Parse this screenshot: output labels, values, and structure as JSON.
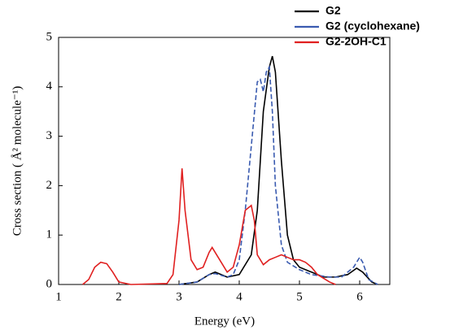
{
  "chart_data": {
    "type": "line",
    "xlabel": "Energy (eV)",
    "ylabel": "Cross section ( Å² molecule⁻¹)",
    "xlim": [
      1,
      6.5
    ],
    "xticks": [
      1,
      2,
      3,
      4,
      5,
      6
    ],
    "ylim": [
      0,
      5
    ],
    "yticks": [
      0,
      1,
      2,
      3,
      4,
      5
    ],
    "legend": "top-right",
    "series": [
      {
        "name": "G2",
        "color": "#000000",
        "dashed": false,
        "x": [
          3.0,
          3.3,
          3.5,
          3.6,
          3.8,
          4.0,
          4.2,
          4.3,
          4.4,
          4.5,
          4.55,
          4.6,
          4.7,
          4.8,
          4.9,
          5.0,
          5.2,
          5.4,
          5.6,
          5.8,
          5.95,
          6.05,
          6.2,
          6.3
        ],
        "values": [
          0,
          0.05,
          0.2,
          0.25,
          0.15,
          0.2,
          0.6,
          1.5,
          3.5,
          4.4,
          4.62,
          4.3,
          2.5,
          1.0,
          0.5,
          0.35,
          0.25,
          0.15,
          0.15,
          0.2,
          0.33,
          0.25,
          0.05,
          0
        ]
      },
      {
        "name": "G2 (cyclohexane)",
        "color": "#3a5bb0",
        "dashed": true,
        "x": [
          3.0,
          3.3,
          3.5,
          3.6,
          3.8,
          3.9,
          4.0,
          4.1,
          4.2,
          4.3,
          4.35,
          4.4,
          4.45,
          4.5,
          4.55,
          4.6,
          4.7,
          4.8,
          5.0,
          5.2,
          5.5,
          5.7,
          5.9,
          6.0,
          6.05,
          6.15,
          6.3
        ],
        "values": [
          0,
          0.05,
          0.2,
          0.22,
          0.15,
          0.2,
          0.5,
          1.5,
          2.8,
          4.1,
          4.15,
          3.9,
          4.3,
          4.4,
          3.5,
          2.0,
          0.8,
          0.45,
          0.3,
          0.2,
          0.15,
          0.15,
          0.35,
          0.55,
          0.45,
          0.1,
          0
        ]
      },
      {
        "name": "G2-2OH-C1",
        "color": "#e02020",
        "dashed": false,
        "x": [
          1.4,
          1.5,
          1.6,
          1.7,
          1.8,
          1.9,
          2.0,
          2.2,
          2.8,
          2.9,
          3.0,
          3.05,
          3.1,
          3.2,
          3.3,
          3.4,
          3.5,
          3.55,
          3.65,
          3.8,
          3.9,
          4.0,
          4.1,
          4.2,
          4.25,
          4.3,
          4.4,
          4.5,
          4.6,
          4.7,
          4.8,
          4.9,
          5.0,
          5.1,
          5.2,
          5.3,
          5.5,
          5.6
        ],
        "values": [
          0,
          0.1,
          0.35,
          0.45,
          0.42,
          0.25,
          0.05,
          0,
          0.02,
          0.2,
          1.3,
          2.35,
          1.5,
          0.5,
          0.3,
          0.35,
          0.65,
          0.75,
          0.55,
          0.25,
          0.35,
          0.8,
          1.5,
          1.6,
          1.3,
          0.6,
          0.4,
          0.5,
          0.55,
          0.6,
          0.55,
          0.5,
          0.5,
          0.45,
          0.35,
          0.2,
          0.05,
          0
        ]
      }
    ]
  }
}
